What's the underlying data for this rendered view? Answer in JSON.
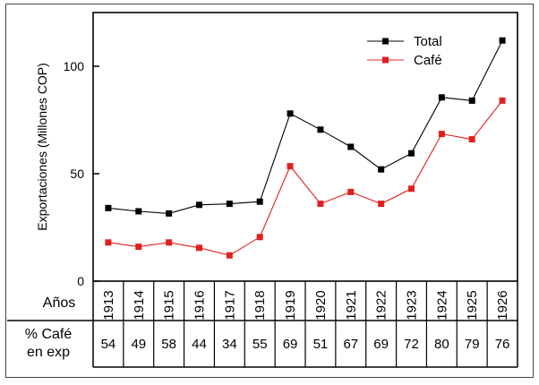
{
  "chart_data": {
    "type": "line",
    "ylabel": "Exportaciones (Millones COP)",
    "ylim": [
      0,
      125
    ],
    "yticks": [
      0,
      50,
      100
    ],
    "grid": false,
    "legend": "top-right",
    "x": [
      "1913",
      "1914",
      "1915",
      "1916",
      "1917",
      "1918",
      "1919",
      "1920",
      "1921",
      "1922",
      "1923",
      "1924",
      "1925",
      "1926"
    ],
    "series": [
      {
        "name": "Total",
        "color": "#000000",
        "values": [
          34,
          32.5,
          31.5,
          35.5,
          36,
          37,
          78,
          70.5,
          62.5,
          52,
          59.5,
          85.5,
          84,
          112
        ]
      },
      {
        "name": "Café",
        "color": "#e02020",
        "values": [
          18,
          16,
          18,
          15.5,
          12,
          20.5,
          53.5,
          36,
          41.5,
          36,
          43,
          68.5,
          66,
          84
        ]
      }
    ]
  },
  "table": {
    "years_label": "Años",
    "pct_label_line1": "% Café",
    "pct_label_line2": "en exp",
    "pct_values": [
      "54",
      "49",
      "58",
      "44",
      "34",
      "55",
      "69",
      "51",
      "67",
      "69",
      "72",
      "80",
      "79",
      "76"
    ]
  }
}
